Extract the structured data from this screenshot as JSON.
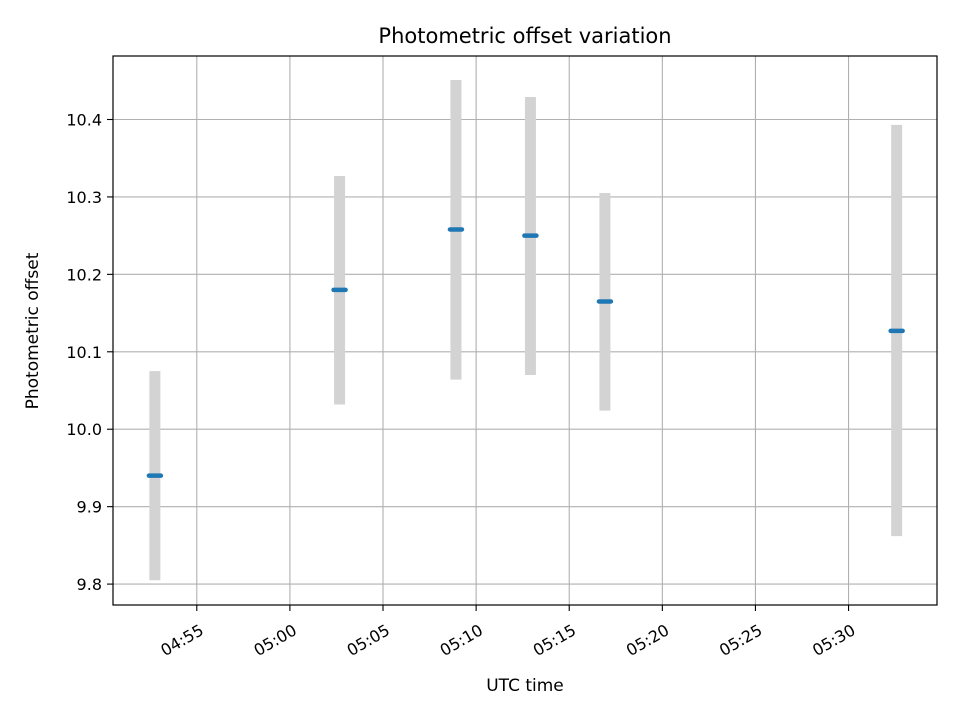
{
  "chart_data": {
    "type": "scatter",
    "title": "Photometric offset variation",
    "xlabel": "UTC time",
    "ylabel": "Photometric offset",
    "x_axis": "time",
    "x_tick_labels": [
      "04:55",
      "05:00",
      "05:05",
      "05:10",
      "05:15",
      "05:20",
      "05:25",
      "05:30"
    ],
    "xlim": [
      "04:50:30",
      "05:34:45"
    ],
    "y_ticks": [
      9.8,
      9.9,
      10.0,
      10.1,
      10.2,
      10.3,
      10.4
    ],
    "y_tick_labels": [
      "9.8",
      "9.9",
      "10.0",
      "10.1",
      "10.2",
      "10.3",
      "10.4"
    ],
    "ylim": [
      9.773,
      10.482
    ],
    "grid": true,
    "colors": {
      "point": "#1f77b4",
      "errorbar": "#d3d3d3",
      "grid": "#b0b0b0"
    },
    "points": [
      {
        "x": "04:52:45",
        "y": 9.94,
        "low": 9.805,
        "high": 10.075
      },
      {
        "x": "05:02:40",
        "y": 10.18,
        "low": 10.032,
        "high": 10.327
      },
      {
        "x": "05:08:55",
        "y": 10.258,
        "low": 10.064,
        "high": 10.451
      },
      {
        "x": "05:12:55",
        "y": 10.25,
        "low": 10.07,
        "high": 10.429
      },
      {
        "x": "05:16:55",
        "y": 10.165,
        "low": 10.024,
        "high": 10.305
      },
      {
        "x": "05:32:35",
        "y": 10.127,
        "low": 9.862,
        "high": 10.393
      }
    ]
  }
}
